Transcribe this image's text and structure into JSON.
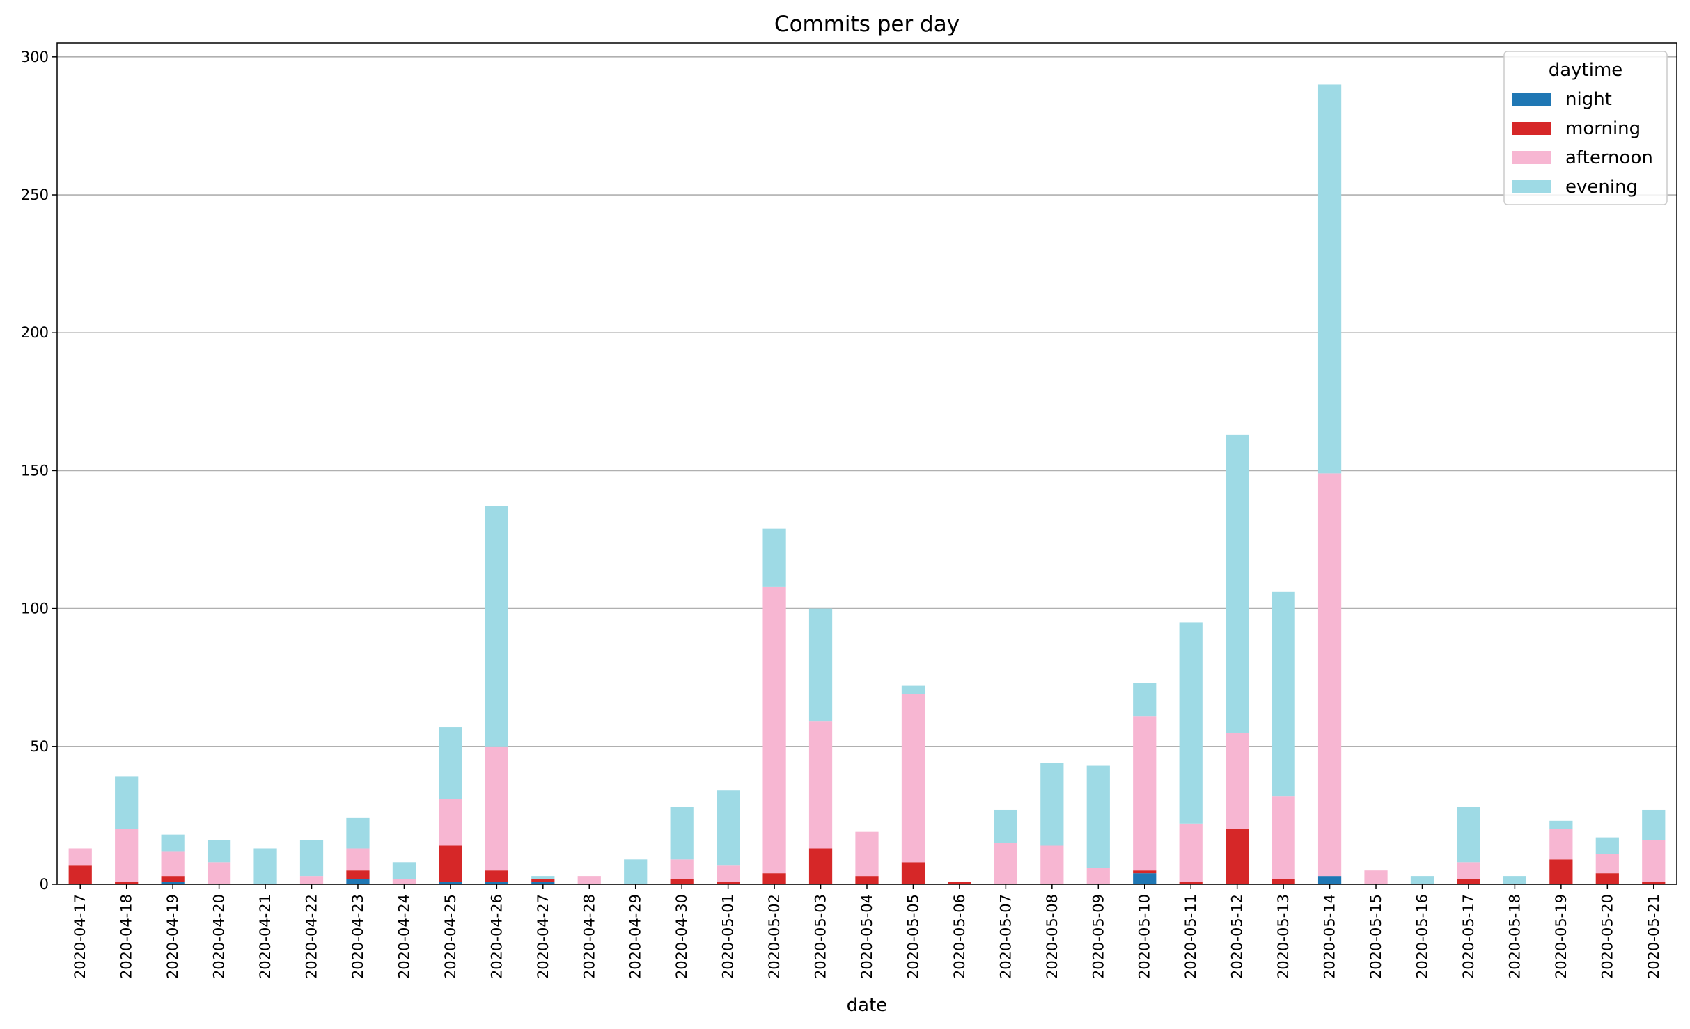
{
  "chart_data": {
    "type": "bar",
    "stacked": true,
    "title": "Commits per day",
    "xlabel": "date",
    "ylabel": "",
    "ylim": [
      0,
      305
    ],
    "yticks": [
      0,
      50,
      100,
      150,
      200,
      250,
      300
    ],
    "grid": "horizontal",
    "legend": {
      "title": "daytime",
      "placement": "top-right"
    },
    "categories": [
      "2020-04-17",
      "2020-04-18",
      "2020-04-19",
      "2020-04-20",
      "2020-04-21",
      "2020-04-22",
      "2020-04-23",
      "2020-04-24",
      "2020-04-25",
      "2020-04-26",
      "2020-04-27",
      "2020-04-28",
      "2020-04-29",
      "2020-04-30",
      "2020-05-01",
      "2020-05-02",
      "2020-05-03",
      "2020-05-04",
      "2020-05-05",
      "2020-05-06",
      "2020-05-07",
      "2020-05-08",
      "2020-05-09",
      "2020-05-10",
      "2020-05-11",
      "2020-05-12",
      "2020-05-13",
      "2020-05-14",
      "2020-05-15",
      "2020-05-16",
      "2020-05-17",
      "2020-05-18",
      "2020-05-19",
      "2020-05-20",
      "2020-05-21"
    ],
    "series": [
      {
        "name": "night",
        "color": "#1f77b4",
        "values": [
          0,
          0,
          1,
          0,
          0,
          0,
          2,
          0,
          1,
          1,
          1,
          0,
          0,
          0,
          0,
          0,
          0,
          0,
          0,
          0,
          0,
          0,
          0,
          4,
          0,
          0,
          0,
          3,
          0,
          0,
          0,
          0,
          0,
          0,
          0
        ]
      },
      {
        "name": "morning",
        "color": "#d62728",
        "values": [
          7,
          1,
          2,
          0,
          0,
          0,
          3,
          0,
          13,
          4,
          1,
          0,
          0,
          2,
          1,
          4,
          13,
          3,
          8,
          1,
          0,
          0,
          0,
          1,
          1,
          20,
          2,
          0,
          0,
          0,
          2,
          0,
          9,
          4,
          1
        ]
      },
      {
        "name": "afternoon",
        "color": "#f7b6d2",
        "values": [
          6,
          19,
          9,
          8,
          0,
          3,
          8,
          2,
          17,
          45,
          0,
          3,
          0,
          7,
          6,
          104,
          46,
          16,
          61,
          0,
          15,
          14,
          6,
          56,
          21,
          35,
          30,
          146,
          5,
          0,
          6,
          0,
          11,
          7,
          15
        ]
      },
      {
        "name": "evening",
        "color": "#9edae5",
        "values": [
          0,
          19,
          6,
          8,
          13,
          13,
          11,
          6,
          26,
          87,
          1,
          0,
          9,
          19,
          27,
          21,
          41,
          0,
          3,
          0,
          12,
          30,
          37,
          12,
          73,
          108,
          74,
          141,
          0,
          3,
          20,
          3,
          3,
          6,
          11
        ]
      }
    ]
  }
}
